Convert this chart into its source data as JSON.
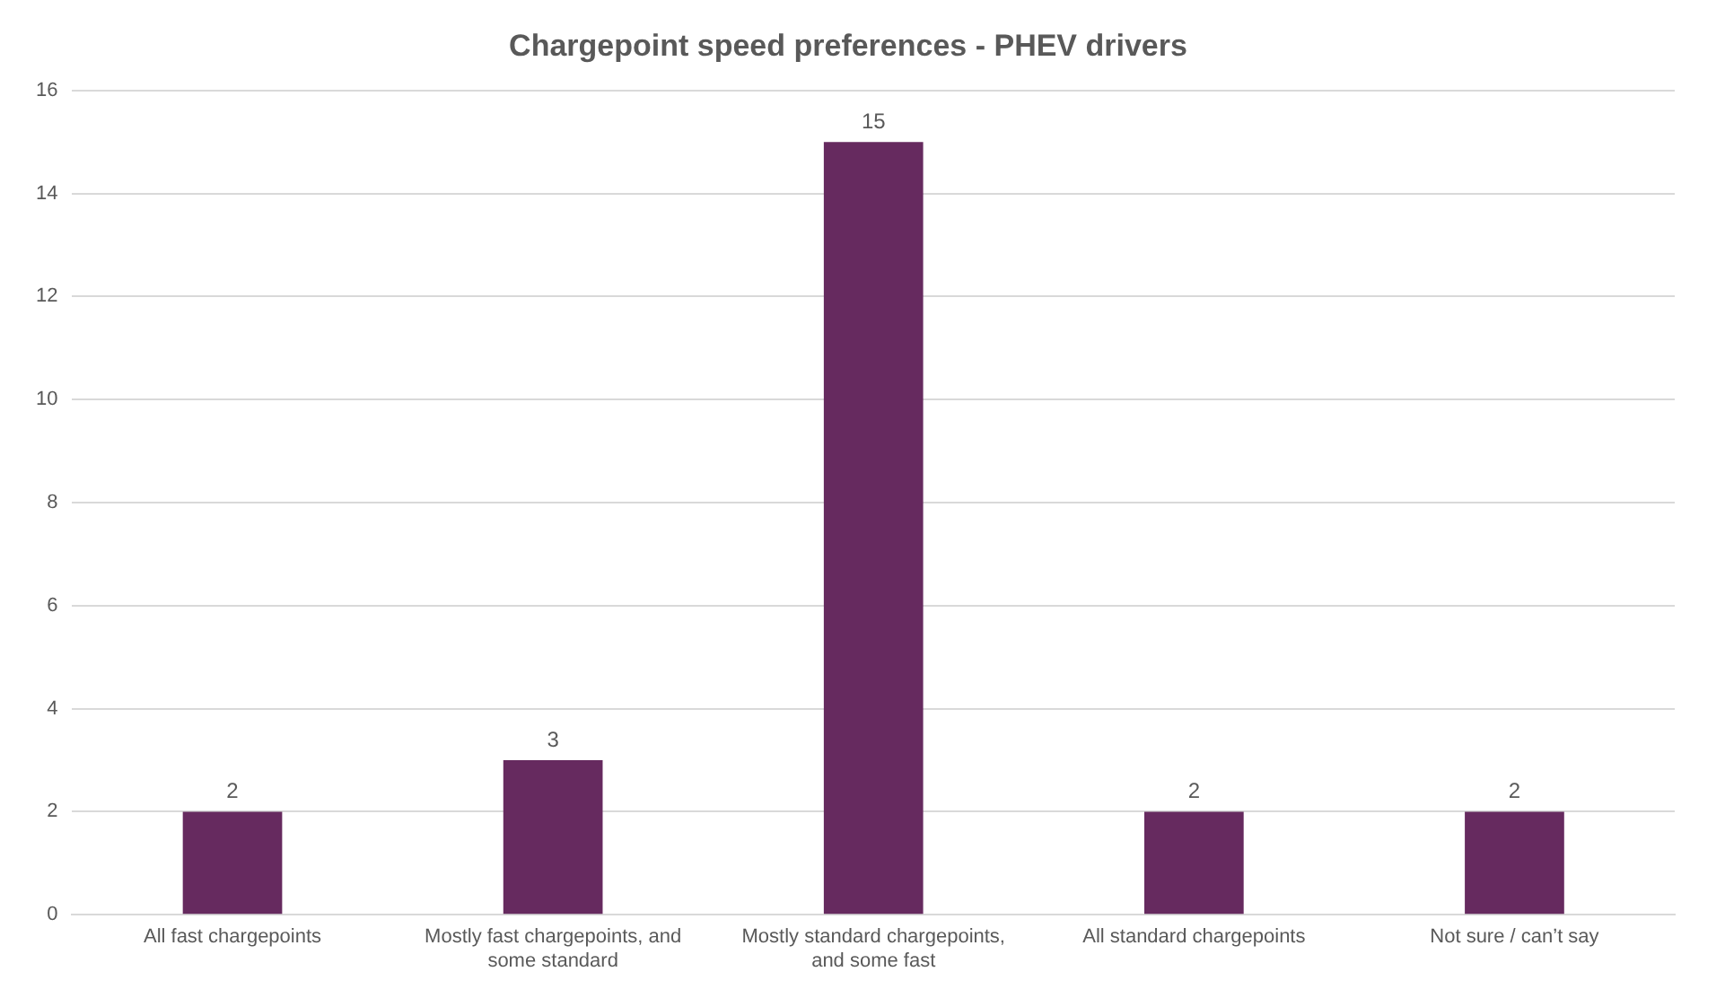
{
  "chart_data": {
    "type": "bar",
    "title": "Chargepoint speed preferences - PHEV drivers",
    "categories": [
      "All fast chargepoints",
      "Mostly fast chargepoints, and some standard",
      "Mostly standard chargepoints, and some fast",
      "All standard chargepoints",
      "Not sure / can’t say"
    ],
    "values": [
      2,
      3,
      15,
      2,
      2
    ],
    "color": "#662a5f",
    "ylim": [
      0,
      16
    ],
    "yticks": [
      0,
      2,
      4,
      6,
      8,
      10,
      12,
      14,
      16
    ],
    "grid": "y",
    "data_labels": true,
    "legend": false
  }
}
